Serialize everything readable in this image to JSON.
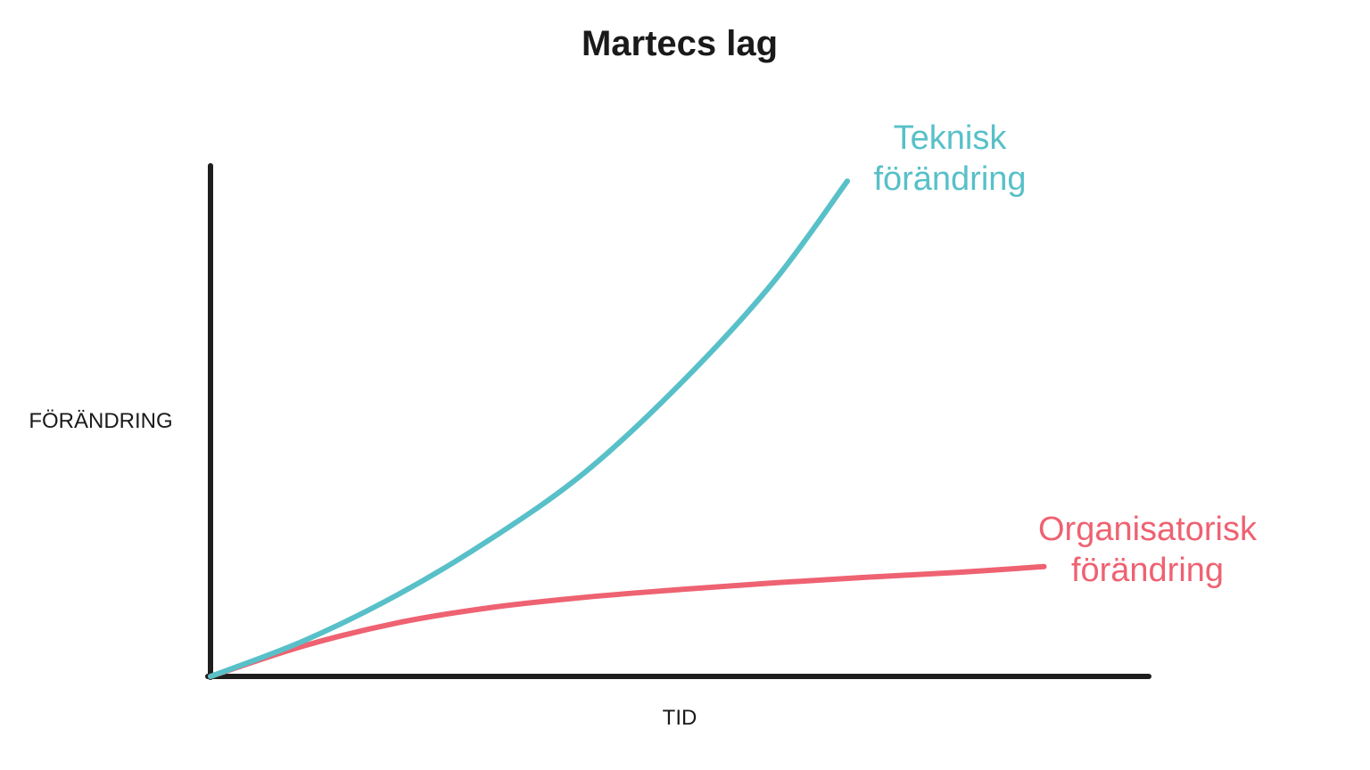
{
  "chart_data": {
    "type": "line",
    "title": "Martecs lag",
    "xlabel": "TID",
    "ylabel": "FÖRÄNDRING",
    "grid": false,
    "xlim": [
      0,
      100
    ],
    "ylim": [
      0,
      100
    ],
    "series": [
      {
        "name": "Teknisk förändring",
        "label_lines": [
          "Teknisk",
          "förändring"
        ],
        "color": "#58c0c8",
        "x": [
          0,
          10,
          20,
          30,
          40,
          50,
          60,
          68
        ],
        "y": [
          0,
          7,
          16,
          27,
          40,
          57,
          77,
          97
        ]
      },
      {
        "name": "Organisatorisk förändring",
        "label_lines": [
          "Organisatorisk",
          "förändring"
        ],
        "color": "#ee6271",
        "x": [
          0,
          10,
          20,
          30,
          40,
          50,
          60,
          70,
          80,
          89
        ],
        "y": [
          0,
          6,
          10.5,
          13.5,
          15.5,
          17,
          18.3,
          19.4,
          20.4,
          21.5
        ]
      }
    ],
    "axis_color": "#1e1e1e"
  }
}
